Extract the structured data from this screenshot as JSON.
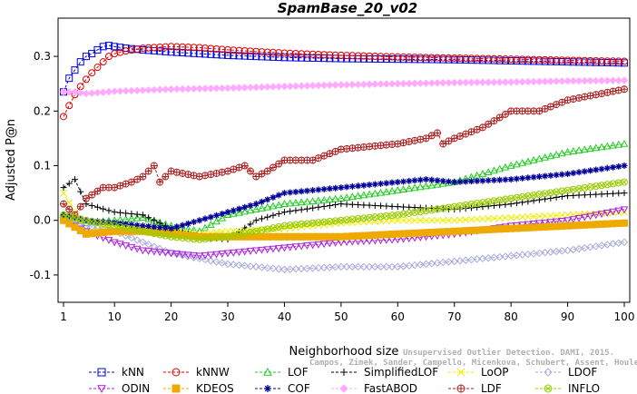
{
  "chart_data": {
    "type": "line",
    "title": "SpamBase_20_v02",
    "xlabel": "Neighborhood size",
    "ylabel": "Adjusted P@n",
    "xlim": [
      1,
      100
    ],
    "ylim": [
      -0.15,
      0.37
    ],
    "xticks": [
      1,
      10,
      20,
      30,
      40,
      50,
      60,
      70,
      80,
      90,
      100
    ],
    "yticks": [
      -0.1,
      0.0,
      0.1,
      0.2,
      0.3
    ],
    "ytick_labels": [
      "-0.1",
      "0.0",
      "0.1",
      "0.2",
      "0.3"
    ],
    "grid": false,
    "legend_position": "bottom",
    "watermark_lines": [
      "Unsupervised Outlier Detection. DAMI, 2015.",
      "Campos, Zimek, Sander, Campello, Micenkova, Schubert, Assent, Houle"
    ],
    "series": [
      {
        "name": "kNN",
        "color": "#0000dd",
        "marker": "square",
        "line": "dashed",
        "k": [
          1,
          2,
          3,
          4,
          5,
          6,
          7,
          8,
          9,
          10,
          12,
          15,
          20,
          25,
          30,
          40,
          50,
          60,
          70,
          80,
          90,
          100
        ],
        "values": [
          0.235,
          0.26,
          0.275,
          0.29,
          0.3,
          0.305,
          0.312,
          0.318,
          0.32,
          0.318,
          0.315,
          0.312,
          0.308,
          0.305,
          0.302,
          0.298,
          0.296,
          0.295,
          0.294,
          0.292,
          0.29,
          0.288
        ]
      },
      {
        "name": "kNNW",
        "color": "#dd0000",
        "marker": "circle",
        "line": "dashed",
        "k": [
          1,
          2,
          3,
          4,
          5,
          6,
          7,
          8,
          9,
          10,
          12,
          15,
          20,
          25,
          30,
          40,
          50,
          60,
          70,
          80,
          90,
          100
        ],
        "values": [
          0.19,
          0.21,
          0.23,
          0.245,
          0.258,
          0.27,
          0.28,
          0.29,
          0.3,
          0.305,
          0.31,
          0.315,
          0.318,
          0.316,
          0.312,
          0.306,
          0.302,
          0.299,
          0.297,
          0.295,
          0.293,
          0.291
        ]
      },
      {
        "name": "LOF",
        "color": "#22cc22",
        "marker": "triangle-up",
        "line": "dashed",
        "k": [
          1,
          5,
          10,
          15,
          20,
          25,
          30,
          35,
          40,
          50,
          60,
          70,
          80,
          90,
          100
        ],
        "values": [
          0.01,
          -0.005,
          0.0,
          0.005,
          -0.01,
          -0.02,
          0.01,
          0.02,
          0.03,
          0.04,
          0.055,
          0.07,
          0.1,
          0.125,
          0.14
        ]
      },
      {
        "name": "SimplifiedLOF",
        "color": "#000000",
        "marker": "plus",
        "line": "dashed",
        "k": [
          1,
          3,
          5,
          10,
          15,
          20,
          25,
          30,
          35,
          40,
          50,
          60,
          70,
          80,
          90,
          100
        ],
        "values": [
          0.06,
          0.075,
          0.03,
          0.015,
          0.01,
          -0.015,
          -0.03,
          -0.035,
          0.0,
          0.015,
          0.03,
          0.025,
          0.02,
          0.03,
          0.045,
          0.05
        ]
      },
      {
        "name": "LoOP",
        "color": "#eeee00",
        "marker": "x",
        "line": "dashed",
        "k": [
          1,
          5,
          10,
          20,
          25,
          30,
          40,
          50,
          60,
          70,
          80,
          90,
          100
        ],
        "values": [
          0.05,
          -0.02,
          -0.01,
          -0.02,
          -0.025,
          -0.02,
          -0.015,
          -0.005,
          0.0,
          0.0,
          0.005,
          0.01,
          0.015
        ]
      },
      {
        "name": "LDOF",
        "color": "#aaaadd",
        "marker": "diamond",
        "line": "dashed",
        "k": [
          1,
          5,
          10,
          15,
          20,
          25,
          30,
          35,
          40,
          50,
          60,
          70,
          80,
          90,
          100
        ],
        "values": [
          0.0,
          -0.01,
          -0.02,
          -0.04,
          -0.06,
          -0.07,
          -0.08,
          -0.085,
          -0.09,
          -0.085,
          -0.085,
          -0.075,
          -0.065,
          -0.055,
          -0.04
        ]
      },
      {
        "name": "ODIN",
        "color": "#aa22dd",
        "marker": "triangle-down",
        "line": "dashed",
        "k": [
          1,
          5,
          10,
          15,
          20,
          25,
          30,
          35,
          40,
          50,
          60,
          70,
          80,
          90,
          100
        ],
        "values": [
          0.0,
          -0.02,
          -0.04,
          -0.055,
          -0.06,
          -0.065,
          -0.06,
          -0.055,
          -0.05,
          -0.04,
          -0.035,
          -0.025,
          -0.01,
          0.0,
          0.02
        ]
      },
      {
        "name": "KDEOS",
        "color": "#eeaa00",
        "marker": "square-filled",
        "line": "dashed",
        "k": [
          1,
          5,
          10,
          15,
          20,
          25,
          30,
          40,
          50,
          60,
          70,
          80,
          90,
          100
        ],
        "values": [
          0.0,
          -0.025,
          -0.02,
          -0.02,
          -0.025,
          -0.03,
          -0.03,
          -0.03,
          -0.03,
          -0.025,
          -0.02,
          -0.015,
          -0.01,
          -0.005
        ]
      },
      {
        "name": "COF",
        "color": "#000099",
        "marker": "asterisk",
        "line": "dashed",
        "k": [
          1,
          5,
          10,
          15,
          20,
          25,
          30,
          35,
          40,
          45,
          50,
          55,
          60,
          65,
          70,
          80,
          90,
          100
        ],
        "values": [
          0.01,
          0.0,
          -0.005,
          -0.01,
          -0.015,
          0.0,
          0.015,
          0.03,
          0.05,
          0.055,
          0.06,
          0.065,
          0.07,
          0.075,
          0.07,
          0.075,
          0.085,
          0.1
        ]
      },
      {
        "name": "FastABOD",
        "color": "#ffaaff",
        "marker": "diamond-filled",
        "line": "dashed",
        "k": [
          1,
          3,
          5,
          10,
          20,
          30,
          40,
          50,
          60,
          70,
          80,
          90,
          100
        ],
        "values": [
          0.235,
          0.235,
          0.232,
          0.236,
          0.24,
          0.242,
          0.245,
          0.248,
          0.25,
          0.252,
          0.253,
          0.255,
          0.256
        ]
      },
      {
        "name": "LDF",
        "color": "#aa2222",
        "marker": "circle-plus",
        "line": "dashed",
        "k": [
          1,
          3,
          5,
          8,
          10,
          13,
          15,
          17,
          18,
          19,
          20,
          25,
          30,
          33,
          35,
          37,
          40,
          45,
          50,
          60,
          65,
          67,
          68,
          70,
          75,
          80,
          85,
          90,
          100
        ],
        "values": [
          0.03,
          0.01,
          0.04,
          0.06,
          0.06,
          0.07,
          0.08,
          0.1,
          0.07,
          0.08,
          0.09,
          0.08,
          0.09,
          0.1,
          0.08,
          0.09,
          0.11,
          0.11,
          0.13,
          0.14,
          0.15,
          0.16,
          0.14,
          0.15,
          0.17,
          0.2,
          0.2,
          0.22,
          0.24
        ]
      },
      {
        "name": "INFLO",
        "color": "#99cc00",
        "marker": "circle-x",
        "line": "dashed",
        "k": [
          1,
          5,
          10,
          15,
          20,
          25,
          30,
          35,
          40,
          50,
          60,
          70,
          80,
          90,
          100
        ],
        "values": [
          0.01,
          0.0,
          -0.01,
          -0.02,
          -0.03,
          -0.035,
          -0.03,
          -0.02,
          -0.01,
          0.0,
          0.01,
          0.025,
          0.04,
          0.055,
          0.07
        ]
      }
    ]
  }
}
